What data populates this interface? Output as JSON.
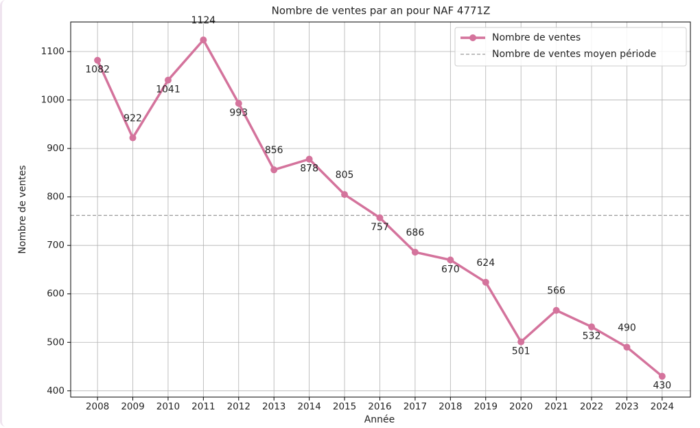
{
  "chart_data": {
    "type": "line",
    "title": "Nombre de ventes par an pour NAF 4771Z",
    "xlabel": "Année",
    "ylabel": "Nombre de ventes",
    "x": [
      2008,
      2009,
      2010,
      2011,
      2012,
      2013,
      2014,
      2015,
      2016,
      2017,
      2018,
      2019,
      2020,
      2021,
      2022,
      2023,
      2024
    ],
    "series": [
      {
        "name": "Nombre de ventes",
        "color": "#d4739c",
        "values": [
          1082,
          922,
          1041,
          1124,
          993,
          856,
          878,
          805,
          757,
          686,
          670,
          624,
          501,
          566,
          532,
          490,
          430
        ]
      }
    ],
    "reference_line": {
      "name": "Nombre de ventes moyen période",
      "value": 762,
      "color": "#999999"
    },
    "xlim": [
      2007.24,
      2024.8
    ],
    "xticks": [
      2008,
      2009,
      2010,
      2011,
      2012,
      2013,
      2014,
      2015,
      2016,
      2017,
      2018,
      2019,
      2020,
      2021,
      2022,
      2023,
      2024
    ],
    "ylim": [
      387,
      1161
    ],
    "yticks": [
      400,
      500,
      600,
      700,
      800,
      900,
      1000,
      1100
    ],
    "grid": true,
    "legend": "upper right"
  }
}
